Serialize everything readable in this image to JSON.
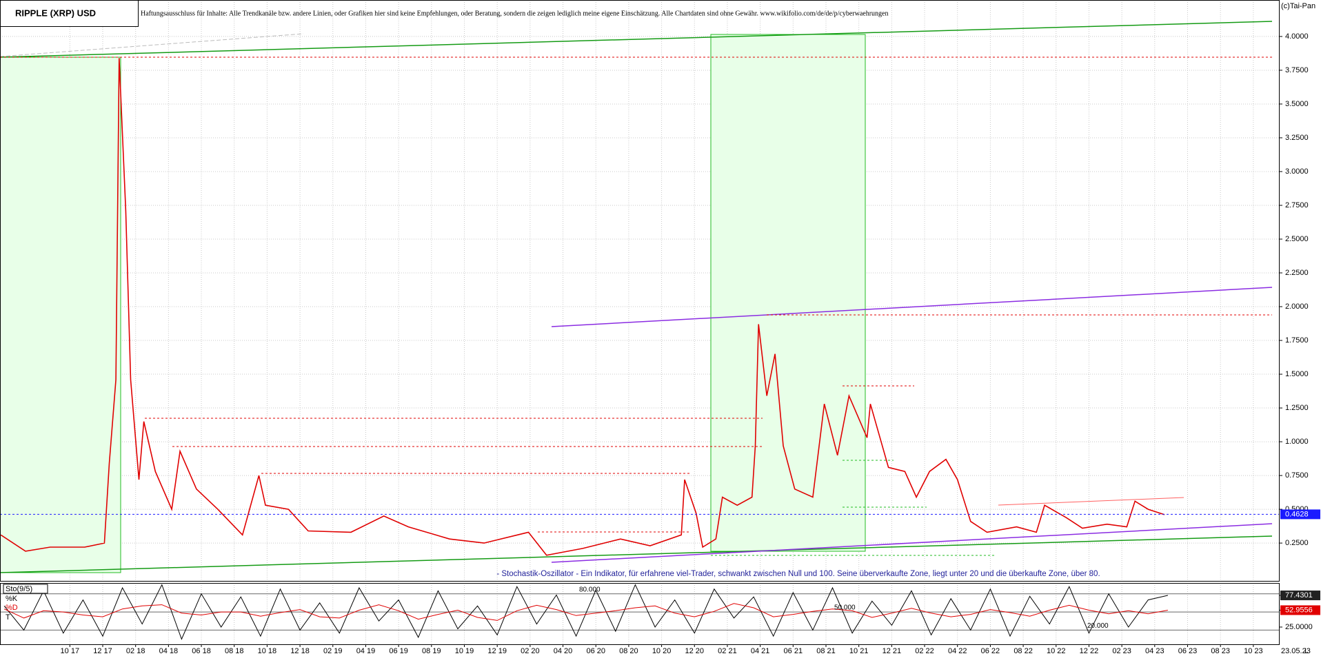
{
  "chart_data": [
    {
      "type": "line",
      "title": "RIPPLE (XRP) USD",
      "subtitle": "Haftungsausschluss für Inhalte: Alle Trendkanäle bzw. andere Linien, oder Grafiken hier sind keine Empfehlungen, oder Beratung, sondern die zeigen lediglich meine eigene Einschätzung. Alle Chartdaten sind ohne Gewähr. www.wikifolio.com/de/de/p/cyberwaehrungen",
      "credit": "(c)Tai-Pan",
      "x": [
        -4.2,
        -2.7,
        -1.2,
        0.9,
        2.1,
        2.4,
        2.8,
        3.0,
        3.4,
        3.7,
        4.2,
        4.5,
        5.2,
        6.2,
        6.7,
        7.7,
        9.0,
        10.5,
        11.5,
        11.9,
        13.3,
        14.5,
        17.1,
        19.1,
        20.6,
        23.1,
        25.2,
        27.9,
        29.0,
        31.2,
        33.5,
        35.3,
        37.2,
        37.4,
        38.1,
        38.5,
        39.3,
        39.7,
        40.6,
        41.5,
        41.7,
        41.9,
        42.4,
        42.9,
        43.4,
        44.1,
        45.2,
        45.9,
        46.7,
        47.4,
        48.5,
        48.7,
        49.8,
        50.8,
        51.5,
        52.3,
        53.3,
        54.0,
        54.8,
        55.8,
        57.6,
        58.8,
        59.3,
        60.6,
        61.6,
        63.1,
        64.3,
        64.8,
        65.6,
        66.6
      ],
      "values": [
        0.31,
        0.19,
        0.22,
        0.22,
        0.25,
        0.84,
        1.46,
        3.84,
        2.71,
        1.46,
        0.72,
        1.15,
        0.78,
        0.5,
        0.93,
        0.65,
        0.5,
        0.31,
        0.75,
        0.53,
        0.5,
        0.34,
        0.33,
        0.45,
        0.37,
        0.28,
        0.25,
        0.33,
        0.16,
        0.21,
        0.28,
        0.23,
        0.31,
        0.72,
        0.47,
        0.22,
        0.28,
        0.59,
        0.53,
        0.59,
        0.97,
        1.87,
        1.34,
        1.65,
        0.97,
        0.65,
        0.59,
        1.28,
        0.9,
        1.34,
        1.03,
        1.28,
        0.81,
        0.78,
        0.59,
        0.78,
        0.87,
        0.72,
        0.41,
        0.33,
        0.37,
        0.33,
        0.53,
        0.44,
        0.36,
        0.39,
        0.37,
        0.56,
        0.5,
        0.46
      ],
      "color": "#e00000",
      "xlim": [
        -4.25,
        73.6
      ],
      "xticks": [
        {
          "value": 0,
          "label": "10 17"
        },
        {
          "value": 2,
          "label": "12 17"
        },
        {
          "value": 4,
          "label": "02 18"
        },
        {
          "value": 6,
          "label": "04 18"
        },
        {
          "value": 8,
          "label": "06 18"
        },
        {
          "value": 10,
          "label": "08 18"
        },
        {
          "value": 12,
          "label": "10 18"
        },
        {
          "value": 14,
          "label": "12 18"
        },
        {
          "value": 16,
          "label": "02 19"
        },
        {
          "value": 18,
          "label": "04 19"
        },
        {
          "value": 20,
          "label": "06 19"
        },
        {
          "value": 22,
          "label": "08 19"
        },
        {
          "value": 24,
          "label": "10 19"
        },
        {
          "value": 26,
          "label": "12 19"
        },
        {
          "value": 28,
          "label": "02 20"
        },
        {
          "value": 30,
          "label": "04 20"
        },
        {
          "value": 32,
          "label": "06 20"
        },
        {
          "value": 34,
          "label": "08 20"
        },
        {
          "value": 36,
          "label": "10 20"
        },
        {
          "value": 38,
          "label": "12 20"
        },
        {
          "value": 40,
          "label": "02 21"
        },
        {
          "value": 42,
          "label": "04 21"
        },
        {
          "value": 44,
          "label": "06 21"
        },
        {
          "value": 46,
          "label": "08 21"
        },
        {
          "value": 48,
          "label": "10 21"
        },
        {
          "value": 50,
          "label": "12 21"
        },
        {
          "value": 52,
          "label": "02 22"
        },
        {
          "value": 54,
          "label": "04 22"
        },
        {
          "value": 56,
          "label": "06 22"
        },
        {
          "value": 58,
          "label": "08 22"
        },
        {
          "value": 60,
          "label": "10 22"
        },
        {
          "value": 62,
          "label": "12 22"
        },
        {
          "value": 64,
          "label": "02 23"
        },
        {
          "value": 66,
          "label": "04 23"
        },
        {
          "value": 68,
          "label": "06 23"
        },
        {
          "value": 70,
          "label": "08 23"
        },
        {
          "value": 72,
          "label": "10 23"
        }
      ],
      "ylim": [
        -0.03,
        4.27
      ],
      "yticks": [
        {
          "value": 0.25,
          "label": "0.2500"
        },
        {
          "value": 0.5,
          "label": "0.5000"
        },
        {
          "value": 0.75,
          "label": "0.7500"
        },
        {
          "value": 1,
          "label": "1.0000"
        },
        {
          "value": 1.25,
          "label": "1.2500"
        },
        {
          "value": 1.5,
          "label": "1.5000"
        },
        {
          "value": 1.75,
          "label": "1.7500"
        },
        {
          "value": 2,
          "label": "2.0000"
        },
        {
          "value": 2.25,
          "label": "2.2500"
        },
        {
          "value": 2.5,
          "label": "2.5000"
        },
        {
          "value": 2.75,
          "label": "2.7500"
        },
        {
          "value": 3,
          "label": "3.0000"
        },
        {
          "value": 3.25,
          "label": "3.2500"
        },
        {
          "value": 3.5,
          "label": "3.5000"
        },
        {
          "value": 3.75,
          "label": "3.7500"
        },
        {
          "value": 4,
          "label": "4.0000"
        }
      ],
      "grid": true,
      "last_price": 0.4628,
      "last_date": "23.05.23",
      "scale_mode": "L"
    },
    {
      "type": "line",
      "title": "Sto(9/5)",
      "note": "- Stochastik-Oszillator - Ein Indikator, für erfahrene viel-Trader, schwankt zwischen Null und 100. Seine überverkaufte Zone, liegt unter 20 und die überkaufte Zone, über 80.",
      "x": [
        -4.0,
        -2.8,
        -1.6,
        -0.4,
        0.8,
        2.0,
        3.2,
        4.4,
        5.6,
        6.8,
        8.0,
        9.2,
        10.4,
        11.6,
        12.8,
        14.0,
        15.2,
        16.4,
        17.6,
        18.8,
        20.0,
        21.2,
        22.4,
        23.6,
        24.8,
        26.0,
        27.2,
        28.4,
        29.6,
        30.8,
        32.0,
        33.2,
        34.4,
        35.6,
        36.8,
        38.0,
        39.2,
        40.4,
        41.6,
        42.8,
        44.0,
        45.2,
        46.4,
        47.6,
        48.8,
        50.0,
        51.2,
        52.4,
        53.6,
        54.8,
        56.0,
        57.2,
        58.4,
        59.6,
        60.8,
        62.0,
        63.2,
        64.4,
        65.6,
        66.8
      ],
      "series": [
        {
          "name": "%K",
          "color": "#000000",
          "values": [
            60,
            20,
            85,
            15,
            70,
            10,
            90,
            30,
            95,
            5,
            80,
            25,
            75,
            10,
            88,
            20,
            65,
            15,
            90,
            35,
            70,
            8,
            85,
            22,
            60,
            12,
            92,
            30,
            78,
            10,
            86,
            18,
            95,
            25,
            70,
            15,
            88,
            40,
            75,
            10,
            82,
            20,
            90,
            15,
            68,
            28,
            85,
            12,
            72,
            20,
            88,
            10,
            76,
            30,
            92,
            15,
            80,
            25,
            70,
            77.4301
          ]
        },
        {
          "name": "%D",
          "color": "#e00000",
          "values": [
            55,
            40,
            52,
            50,
            45,
            42,
            55,
            60,
            62,
            48,
            45,
            50,
            50,
            43,
            49,
            54,
            42,
            40,
            53,
            62,
            52,
            38,
            46,
            53,
            41,
            36,
            52,
            61,
            54,
            44,
            48,
            52,
            57,
            60,
            48,
            42,
            51,
            64,
            57,
            42,
            46,
            51,
            55,
            52,
            41,
            48,
            56,
            48,
            42,
            46,
            54,
            49,
            43,
            53,
            61,
            53,
            47,
            52,
            47,
            52.9556
          ]
        }
      ],
      "extra_legend": "T",
      "ylim": [
        -3.5,
        98
      ],
      "yticks": [
        77.4301,
        52.9556,
        {
          "value": 25,
          "label": "25.0000"
        }
      ],
      "levels": [
        {
          "value": 80,
          "label": "80.000"
        },
        {
          "value": 50,
          "label": "50.000"
        },
        {
          "value": 20,
          "label": "20.000"
        }
      ]
    }
  ]
}
